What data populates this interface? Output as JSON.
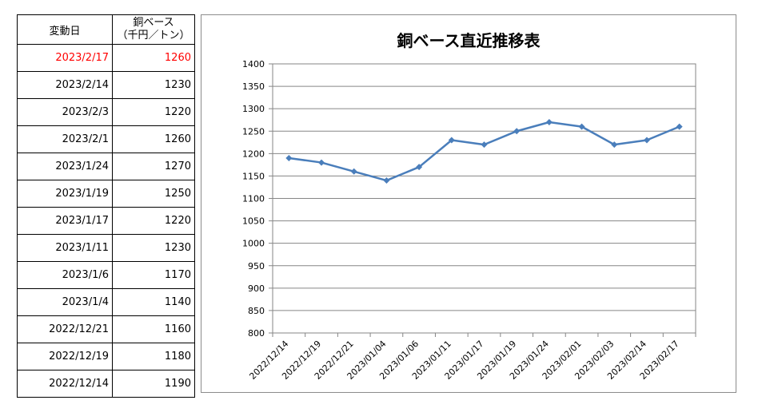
{
  "table": {
    "header_date": "変動日",
    "header_value_line1": "銅ベース",
    "header_value_line2": "（千円／トン）",
    "rows": [
      {
        "date": "2023/2/17",
        "value": "1260",
        "highlight": true
      },
      {
        "date": "2023/2/14",
        "value": "1230"
      },
      {
        "date": "2023/2/3",
        "value": "1220"
      },
      {
        "date": "2023/2/1",
        "value": "1260"
      },
      {
        "date": "2023/1/24",
        "value": "1270"
      },
      {
        "date": "2023/1/19",
        "value": "1250"
      },
      {
        "date": "2023/1/17",
        "value": "1220"
      },
      {
        "date": "2023/1/11",
        "value": "1230"
      },
      {
        "date": "2023/1/6",
        "value": "1170"
      },
      {
        "date": "2023/1/4",
        "value": "1140"
      },
      {
        "date": "2022/12/21",
        "value": "1160"
      },
      {
        "date": "2022/12/19",
        "value": "1180"
      },
      {
        "date": "2022/12/14",
        "value": "1190"
      }
    ],
    "highlight_color": "#ff0000"
  },
  "chart_data": {
    "type": "line",
    "title": "銅ベース直近推移表",
    "categories": [
      "2022/12/14",
      "2022/12/19",
      "2022/12/21",
      "2023/01/04",
      "2023/01/06",
      "2023/01/11",
      "2023/01/17",
      "2023/01/19",
      "2023/01/24",
      "2023/02/01",
      "2023/02/03",
      "2023/02/14",
      "2023/02/17"
    ],
    "series": [
      {
        "values": [
          1190,
          1180,
          1160,
          1140,
          1170,
          1230,
          1220,
          1250,
          1270,
          1260,
          1220,
          1230,
          1260
        ],
        "color": "#4a7ebb"
      }
    ],
    "ylim": [
      800,
      1400
    ],
    "yticks": [
      800,
      850,
      900,
      950,
      1000,
      1050,
      1100,
      1150,
      1200,
      1250,
      1300,
      1350,
      1400
    ],
    "grid": true,
    "legend": "none",
    "marker": "diamond"
  }
}
